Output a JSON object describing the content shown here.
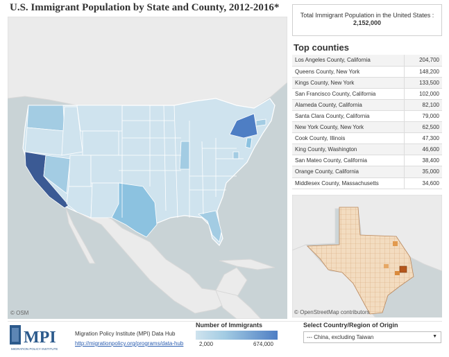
{
  "title": "U.S. Immigrant Population by State and County, 2012-2016*",
  "total": {
    "label": "Total Immigrant Population in the United States :",
    "value": "2,152,000"
  },
  "top_counties": {
    "title": "Top counties",
    "rows": [
      {
        "county": "Los Angeles County, California",
        "value": "204,700"
      },
      {
        "county": "Queens County, New York",
        "value": "148,200"
      },
      {
        "county": "Kings County, New York",
        "value": "133,500"
      },
      {
        "county": "San Francisco County, California",
        "value": "102,000"
      },
      {
        "county": "Alameda County, California",
        "value": "82,100"
      },
      {
        "county": "Santa Clara County, California",
        "value": "79,000"
      },
      {
        "county": "New York County, New York",
        "value": "62,500"
      },
      {
        "county": "Cook County, Illinois",
        "value": "47,300"
      },
      {
        "county": "King County, Washington",
        "value": "46,600"
      },
      {
        "county": "San Mateo County, California",
        "value": "38,400"
      },
      {
        "county": "Orange County, California",
        "value": "35,000"
      },
      {
        "county": "Middlesex County, Massachusetts",
        "value": "34,600"
      }
    ]
  },
  "map": {
    "osm_attribution": "© OSM",
    "texas_attribution": "© OpenStreetMap contributors"
  },
  "footer": {
    "logo_text": "MPI",
    "logo_subtext": "MIGRATION POLICY INSTITUTE",
    "hub_name": "Migration Policy Institute (MPI) Data Hub",
    "hub_link": "http://migrationpolicy.org/programs/data-hub"
  },
  "legend": {
    "title": "Number of Immigrants",
    "min": "2,000",
    "max": "674,000"
  },
  "filter": {
    "title": "Select Country/Region of Origin",
    "selected": "--- China, excluding Taiwan"
  },
  "colors": {
    "water": "#c9d3d6",
    "land": "#ebebeb",
    "state_low": "#cfe3ee",
    "state_mid": "#a3cce3",
    "state_high": "#4e7ec4",
    "state_max": "#3b5a94"
  }
}
